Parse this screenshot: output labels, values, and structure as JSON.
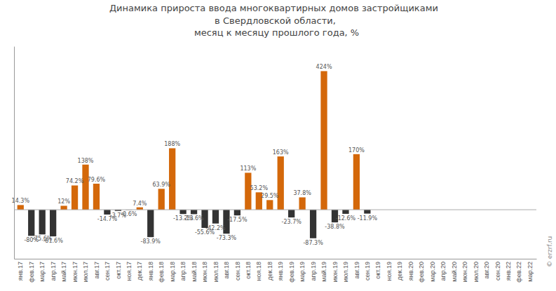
{
  "chart_data": {
    "type": "bar",
    "title": "Динамика прироста ввода многоквартирных домов застройщиками \nв Свердловской области,\n месяц к месяцу прошлого года, %",
    "categories": [
      "янв.17",
      "фев.17",
      "мар.17",
      "апр.17",
      "май.17",
      "июн.17",
      "июл.17",
      "авг.17",
      "сен.17",
      "окт.17",
      "ноя.17",
      "дек.17",
      "янв.18",
      "фев.18",
      "мар.18",
      "апр.18",
      "май.18",
      "июн.18",
      "июл.18",
      "авг.18",
      "сен.18",
      "окт.18",
      "ноя.18",
      "дек.18",
      "янв.19",
      "фев.19",
      "мар.19",
      "апр.19",
      "май.19",
      "июн.19",
      "июл.19",
      "авг.19",
      "сен.19",
      "окт.19",
      "ноя.19",
      "дек.19",
      "янв.20",
      "фев.20",
      "мар.20",
      "апр.20",
      "май.20",
      "июн.20",
      "июл.20",
      "авг.20",
      "сен.20",
      "янв.22",
      "фев.22",
      "мар.22"
    ],
    "values": [
      14.3,
      -80.0,
      -75.6,
      -81.6,
      12.0,
      74.2,
      138.0,
      79.6,
      -14.7,
      -3.7,
      -0.6,
      7.4,
      -83.9,
      63.9,
      188.0,
      -13.2,
      -13.6,
      -55.6,
      -42.2,
      -73.3,
      -17.5,
      113.0,
      53.2,
      29.5,
      163.0,
      -23.7,
      37.8,
      -87.3,
      424.0,
      -38.8,
      -12.6,
      170.0,
      -11.9,
      null,
      null,
      null,
      null,
      null,
      null,
      null,
      null,
      null,
      null,
      null,
      null,
      null,
      null,
      null
    ],
    "value_labels": [
      "14.3%",
      "-80%",
      "-75.6%",
      "-81.6%",
      "12%",
      "74.2%",
      "138%",
      "79.6%",
      "-14.7%",
      "-3.7%",
      "-0.6%",
      "7.4%",
      "-83.9%",
      "63.9%",
      "188%",
      "-13.2%",
      "-13.6%",
      "-55.6%",
      "-42.2%",
      "-73.3%",
      "-17.5%",
      "113%",
      "53.2%",
      "29.5%",
      "163%",
      "-23.7%",
      "37.8%",
      "-87.3%",
      "424%",
      "-38.8%",
      "-12.6%",
      "170%",
      "-11.9%",
      null,
      null,
      null,
      null,
      null,
      null,
      null,
      null,
      null,
      null,
      null,
      null,
      null,
      null,
      null
    ],
    "colors": [
      "#d4680a",
      "#333333",
      "#333333",
      "#333333",
      "#d4680a",
      "#d4680a",
      "#d4680a",
      "#d4680a",
      "#333333",
      "#333333",
      "#333333",
      "#d4680a",
      "#333333",
      "#d4680a",
      "#d4680a",
      "#333333",
      "#333333",
      "#333333",
      "#333333",
      "#333333",
      "#333333",
      "#d4680a",
      "#d4680a",
      "#d4680a",
      "#d4680a",
      "#333333",
      "#d4680a",
      "#333333",
      "#d4680a",
      "#333333",
      "#333333",
      "#d4680a",
      "#333333",
      "#333333",
      "#333333",
      "#333333",
      "#333333",
      "#333333",
      "#333333",
      "#333333",
      "#333333",
      "#333333",
      "#333333",
      "#333333",
      "#333333",
      "#333333",
      "#333333",
      "#333333"
    ],
    "ylim": [
      -150,
      500
    ],
    "data_labels": true,
    "tick_labels": "x",
    "annotations": [
      "© erzrf.ru"
    ]
  }
}
